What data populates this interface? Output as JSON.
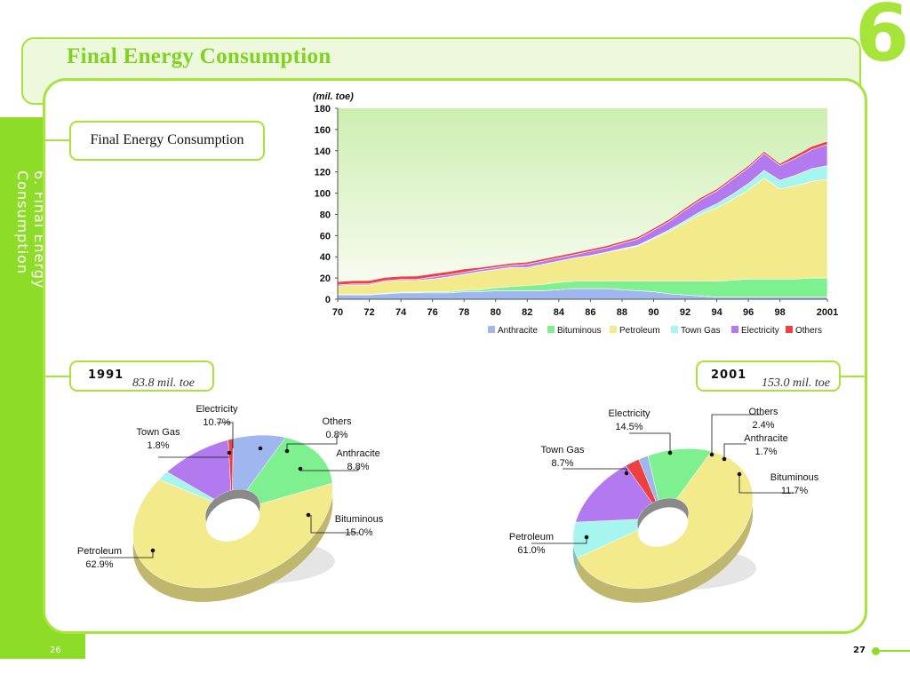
{
  "page": {
    "title": "Final Energy Consumption",
    "chapter_number": "6",
    "side_title": "6. Final Energy Consumption",
    "section_label": "Final Energy Consumption",
    "page_left": "26",
    "page_right": "27",
    "accent_color": "#8cdc28"
  },
  "donuts": [
    {
      "year": "1991",
      "total": "83.8 mil. toe"
    },
    {
      "year": "2001",
      "total": "153.0 mil. toe"
    }
  ],
  "chart_data": [
    {
      "type": "area",
      "stacked": true,
      "unit_label": "(mil. toe)",
      "x": [
        1970,
        1971,
        1972,
        1973,
        1974,
        1975,
        1976,
        1977,
        1978,
        1979,
        1980,
        1981,
        1982,
        1983,
        1984,
        1985,
        1986,
        1987,
        1988,
        1989,
        1990,
        1991,
        1992,
        1993,
        1994,
        1995,
        1996,
        1997,
        1998,
        1999,
        2000,
        2001
      ],
      "xtick_labels": [
        "70",
        "72",
        "74",
        "76",
        "78",
        "80",
        "82",
        "84",
        "86",
        "88",
        "90",
        "92",
        "94",
        "96",
        "98",
        "2001"
      ],
      "xticks": [
        1970,
        1972,
        1974,
        1976,
        1978,
        1980,
        1982,
        1984,
        1986,
        1988,
        1990,
        1992,
        1994,
        1996,
        1998,
        2001
      ],
      "ylim": [
        0,
        180
      ],
      "yticks": [
        0,
        20,
        40,
        60,
        80,
        100,
        120,
        140,
        160,
        180
      ],
      "grid": false,
      "legend_position": "bottom",
      "series": [
        {
          "name": "Anthracite",
          "color": "#9fb6ee",
          "values": [
            4,
            4,
            4,
            5,
            6,
            6,
            6,
            6,
            7,
            7,
            8,
            8,
            8,
            8,
            9,
            10,
            10,
            10,
            9,
            8,
            7,
            5,
            4,
            3,
            2,
            2,
            2,
            2,
            2,
            2,
            2,
            2
          ]
        },
        {
          "name": "Bituminous",
          "color": "#7ef090",
          "values": [
            0.5,
            0.5,
            0.6,
            0.6,
            0.7,
            0.8,
            1,
            1,
            1.5,
            2,
            3,
            4,
            5,
            6,
            7,
            7,
            7,
            7,
            8,
            9,
            10,
            12,
            13,
            14,
            15,
            16,
            17,
            17,
            17,
            17,
            18,
            18
          ]
        },
        {
          "name": "Petroleum",
          "color": "#f3ea8c",
          "values": [
            8,
            9,
            9,
            11,
            11,
            11,
            12,
            14,
            15,
            17,
            17,
            18,
            17,
            19,
            20,
            22,
            24,
            27,
            30,
            33,
            40,
            47,
            55,
            63,
            69,
            76,
            84,
            95,
            85,
            88,
            91,
            93
          ]
        },
        {
          "name": "Town Gas",
          "color": "#a6f5ee",
          "values": [
            0,
            0,
            0,
            0,
            0,
            0,
            0,
            0,
            0,
            0,
            0,
            0,
            0,
            0,
            0,
            0,
            0.2,
            0.4,
            0.6,
            0.8,
            1,
            1.5,
            2,
            3,
            4,
            5,
            6,
            7.5,
            8,
            10,
            12,
            13
          ]
        },
        {
          "name": "Electricity",
          "color": "#b37af0",
          "values": [
            1,
            1,
            1,
            1,
            1,
            1,
            2,
            2,
            2,
            2,
            2,
            2,
            3,
            3,
            3,
            3,
            4,
            4,
            5,
            6,
            7,
            8,
            10,
            11,
            12,
            14,
            15,
            16,
            14,
            16,
            18,
            20
          ]
        },
        {
          "name": "Others",
          "color": "#ee4040",
          "values": [
            3,
            3,
            3,
            3,
            3,
            3,
            3,
            3,
            3,
            2,
            2,
            2,
            2,
            2,
            2,
            2,
            2,
            2,
            2,
            2,
            2,
            2,
            2,
            2,
            2,
            2,
            2,
            2,
            2,
            3,
            3,
            3
          ]
        }
      ]
    },
    {
      "type": "pie",
      "title": "1991",
      "labels": [
        "Anthracite",
        "Bituminous",
        "Petroleum",
        "Town Gas",
        "Electricity",
        "Others"
      ],
      "values": [
        8.8,
        15.0,
        62.9,
        1.8,
        10.7,
        0.8
      ],
      "value_labels": [
        "8.8%",
        "15.0%",
        "62.9%",
        "1.8%",
        "10.7%",
        "0.8%"
      ]
    },
    {
      "type": "pie",
      "title": "2001",
      "labels": [
        "Anthracite",
        "Bituminous",
        "Petroleum",
        "Town Gas",
        "Electricity",
        "Others"
      ],
      "values": [
        1.7,
        11.7,
        61.0,
        8.7,
        14.5,
        2.4
      ],
      "value_labels": [
        "1.7%",
        "11.7%",
        "61.0%",
        "8.7%",
        "14.5%",
        "2.4%"
      ]
    }
  ]
}
